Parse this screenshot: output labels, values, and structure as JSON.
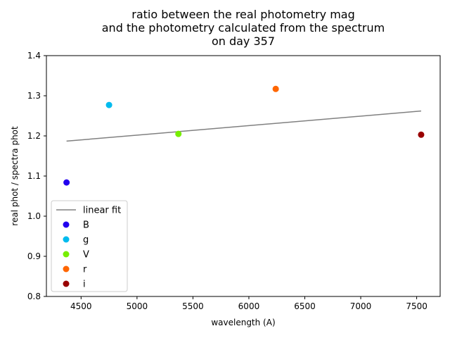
{
  "chart_data": {
    "type": "scatter",
    "title": [
      "ratio between the real photometry mag",
      "and the photometry calculated from the spectrum",
      "on day 357"
    ],
    "xlabel": "wavelength (A)",
    "ylabel": "real phot / spectra phot",
    "xlim": [
      4190,
      7710
    ],
    "ylim": [
      0.8,
      1.4
    ],
    "xticks": [
      4500,
      5000,
      5500,
      6000,
      6500,
      7000,
      7500
    ],
    "yticks": [
      0.8,
      0.9,
      1.0,
      1.1,
      1.2,
      1.3,
      1.4
    ],
    "xtick_labels": [
      "4500",
      "5000",
      "5500",
      "6000",
      "6500",
      "7000",
      "7500"
    ],
    "ytick_labels": [
      "0.8",
      "0.9",
      "1.0",
      "1.1",
      "1.2",
      "1.3",
      "1.4"
    ],
    "grid": false,
    "legend_position": "lower-left",
    "fit": {
      "name": "linear fit",
      "color": "#808080",
      "x": [
        4370,
        7540
      ],
      "y": [
        1.187,
        1.262
      ]
    },
    "series": [
      {
        "name": "B",
        "color": "#2200ee",
        "x": [
          4370
        ],
        "y": [
          1.084
        ]
      },
      {
        "name": "g",
        "color": "#00bbee",
        "x": [
          4750
        ],
        "y": [
          1.277
        ]
      },
      {
        "name": "V",
        "color": "#77ee00",
        "x": [
          5370
        ],
        "y": [
          1.205
        ]
      },
      {
        "name": "r",
        "color": "#ff6600",
        "x": [
          6240
        ],
        "y": [
          1.317
        ]
      },
      {
        "name": "i",
        "color": "#990000",
        "x": [
          7540
        ],
        "y": [
          1.203
        ]
      }
    ]
  }
}
